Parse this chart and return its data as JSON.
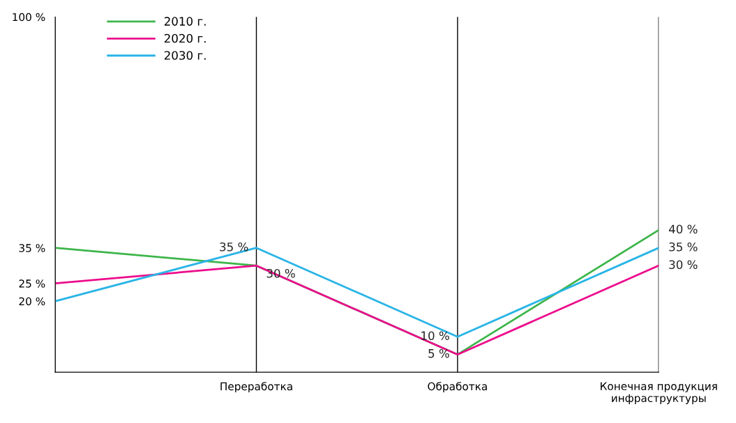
{
  "chart_data": {
    "type": "line",
    "categories": [
      null,
      "Переработка",
      "Обработка",
      "Конечная продукция\nинфраструктуры"
    ],
    "series": [
      {
        "name": "2010 г.",
        "color": "#3db54a",
        "values": [
          35,
          30,
          5,
          40
        ],
        "value_labels": [
          null,
          "30 %",
          "5 %",
          "40 %"
        ]
      },
      {
        "name": "2020 г.",
        "color": "#ec0c8c",
        "values": [
          25,
          30,
          5,
          30
        ],
        "value_labels": [
          null,
          null,
          null,
          "30 %"
        ]
      },
      {
        "name": "2030 г.",
        "color": "#29b4e6",
        "values": [
          20,
          35,
          10,
          35
        ],
        "value_labels": [
          null,
          "35 %",
          "10 %",
          "35 %"
        ]
      }
    ],
    "ylim": [
      0,
      100
    ],
    "yticks": [
      {
        "value": 20,
        "label": "20 %"
      },
      {
        "value": 25,
        "label": "25 %"
      },
      {
        "value": 35,
        "label": "35 %"
      },
      {
        "value": 100,
        "label": "100 %"
      }
    ],
    "grid": "x",
    "legend": "top left",
    "marker": "none",
    "line_style": "solid"
  }
}
